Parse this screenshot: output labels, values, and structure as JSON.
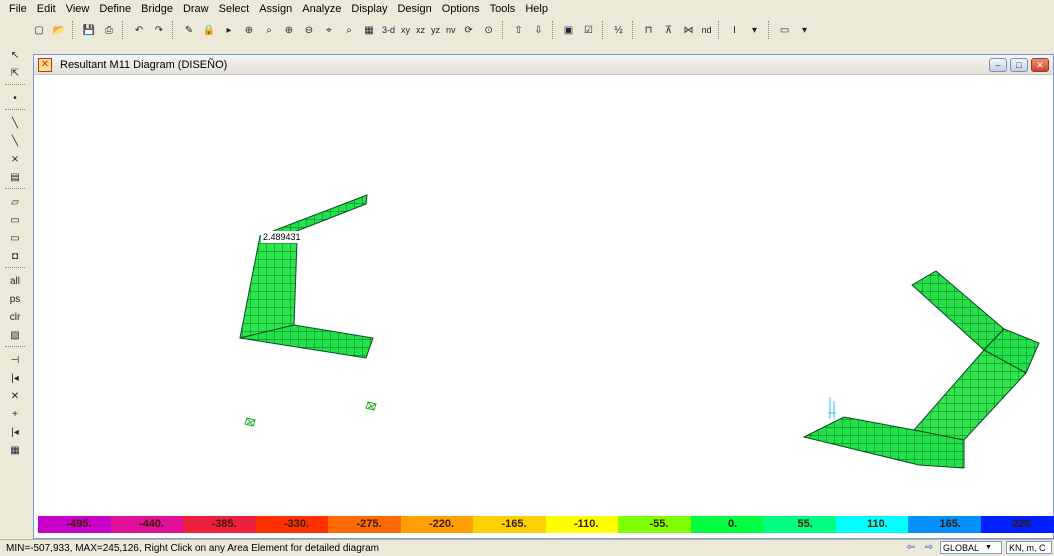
{
  "menu": [
    "File",
    "Edit",
    "View",
    "Define",
    "Bridge",
    "Draw",
    "Select",
    "Assign",
    "Analyze",
    "Display",
    "Design",
    "Options",
    "Tools",
    "Help"
  ],
  "toolbar": {
    "view_3d": "3-d",
    "view_xy": "xy",
    "view_xz": "xz",
    "view_yz": "yz",
    "view_nv": "nv",
    "view_nd": "nd"
  },
  "left_tools": {
    "all": "all",
    "ps": "ps",
    "clr": "clr"
  },
  "window": {
    "title": "Resultant M11 Diagram  (DISEÑO)"
  },
  "diagram": {
    "value_label": "2.489431"
  },
  "colorbar": {
    "labels": [
      "-495.",
      "-440.",
      "-385.",
      "-330.",
      "-275.",
      "-220.",
      "-165.",
      "-110.",
      "-55.",
      "0.",
      "55.",
      "110.",
      "165.",
      "220."
    ],
    "colors": [
      "#c800c8",
      "#e0109a",
      "#f02040",
      "#ff3000",
      "#ff6a00",
      "#ffa000",
      "#ffd000",
      "#ffff00",
      "#80ff00",
      "#00ff40",
      "#00ff80",
      "#00ffff",
      "#0090ff",
      "#0020ff"
    ]
  },
  "status": {
    "text": "MIN=-507,933, MAX=245,126, Right Click on any Area Element for detailed diagram",
    "coord_system": "GLOBAL",
    "units": "KN, m, C"
  }
}
